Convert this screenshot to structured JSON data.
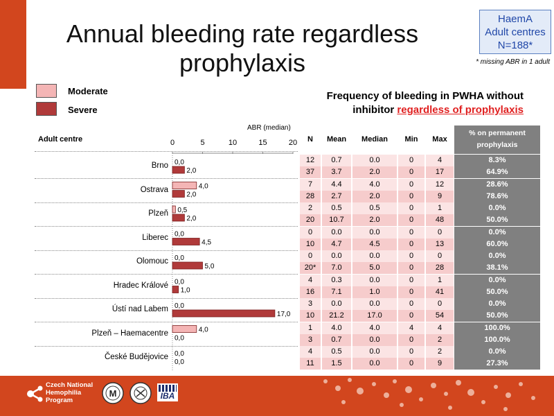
{
  "title": "Annual bleeding rate regardless prophylaxis",
  "badge": [
    "HaemA",
    "Adult centres",
    "N=188*"
  ],
  "note": "* missing ABR in 1 adult",
  "subtitle": {
    "line1": "Frequency of bleeding in PWHA without",
    "line2_prefix": "inhibitor ",
    "line2_highlight": "regardless of prophylaxis"
  },
  "colors": {
    "moderate": "#f4b5b5",
    "severe": "#b03a3a",
    "accent": "#d2461e",
    "pct_bg": "#808080",
    "row_light": "#fbe4e4",
    "row_dark": "#f6cccc"
  },
  "legend": [
    {
      "label": "Moderate",
      "color": "#f4b5b5"
    },
    {
      "label": "Severe",
      "color": "#b03a3a"
    }
  ],
  "table_headers": {
    "centre": "Adult centre",
    "abr": "ABR (median)",
    "n": "N",
    "mean": "Mean",
    "median": "Median",
    "min": "Min",
    "max": "Max",
    "pct": "% on permanent prophylaxis"
  },
  "chart_data": {
    "type": "bar",
    "orientation": "horizontal",
    "xlabel": "ABR (median)",
    "xlim": [
      0,
      20
    ],
    "xticks": [
      0,
      5,
      10,
      15,
      20
    ],
    "categories": [
      "Brno",
      "Ostrava",
      "Plzeň",
      "Liberec",
      "Olomouc",
      "Hradec Králové",
      "Ústí nad Labem",
      "Plzeň – Haemacentre",
      "České Budějovice"
    ],
    "series": [
      {
        "name": "Moderate",
        "values": [
          0.0,
          4.0,
          0.5,
          0.0,
          0.0,
          0.0,
          0.0,
          4.0,
          0.0
        ],
        "labels": [
          "0,0",
          "4,0",
          "0,5",
          "0,0",
          "0,0",
          "0,0",
          "0,0",
          "4,0",
          "0,0"
        ]
      },
      {
        "name": "Severe",
        "values": [
          2.0,
          2.0,
          2.0,
          4.5,
          5.0,
          1.0,
          17.0,
          0.0,
          0.0
        ],
        "labels": [
          "2,0",
          "2,0",
          "2,0",
          "4,5",
          "5,0",
          "1,0",
          "17,0",
          "0,0",
          "0,0"
        ]
      }
    ]
  },
  "table_rows": [
    [
      [
        "12",
        "0.7",
        "0.0",
        "0",
        "4",
        "8.3%"
      ],
      [
        "37",
        "3.7",
        "2.0",
        "0",
        "17",
        "64.9%"
      ]
    ],
    [
      [
        "7",
        "4.4",
        "4.0",
        "0",
        "12",
        "28.6%"
      ],
      [
        "28",
        "2.7",
        "2.0",
        "0",
        "9",
        "78.6%"
      ]
    ],
    [
      [
        "2",
        "0.5",
        "0.5",
        "0",
        "1",
        "0.0%"
      ],
      [
        "20",
        "10.7",
        "2.0",
        "0",
        "48",
        "50.0%"
      ]
    ],
    [
      [
        "0",
        "0.0",
        "0.0",
        "0",
        "0",
        "0.0%"
      ],
      [
        "10",
        "4.7",
        "4.5",
        "0",
        "13",
        "60.0%"
      ]
    ],
    [
      [
        "0",
        "0.0",
        "0.0",
        "0",
        "0",
        "0.0%"
      ],
      [
        "20*",
        "7.0",
        "5.0",
        "0",
        "28",
        "38.1%"
      ]
    ],
    [
      [
        "4",
        "0.3",
        "0.0",
        "0",
        "1",
        "0.0%"
      ],
      [
        "16",
        "7.1",
        "1.0",
        "0",
        "41",
        "50.0%"
      ]
    ],
    [
      [
        "3",
        "0.0",
        "0.0",
        "0",
        "0",
        "0.0%"
      ],
      [
        "10",
        "21.2",
        "17.0",
        "0",
        "54",
        "50.0%"
      ]
    ],
    [
      [
        "1",
        "4.0",
        "4.0",
        "4",
        "4",
        "100.0%"
      ],
      [
        "3",
        "0.7",
        "0.0",
        "0",
        "2",
        "100.0%"
      ]
    ],
    [
      [
        "4",
        "0.5",
        "0.0",
        "0",
        "2",
        "0.0%"
      ],
      [
        "11",
        "1.5",
        "0.0",
        "0",
        "9",
        "27.3%"
      ]
    ]
  ],
  "footer": {
    "org_lines": [
      "Czech National",
      "Hemophilia",
      "Program"
    ],
    "iba": "IBA"
  }
}
